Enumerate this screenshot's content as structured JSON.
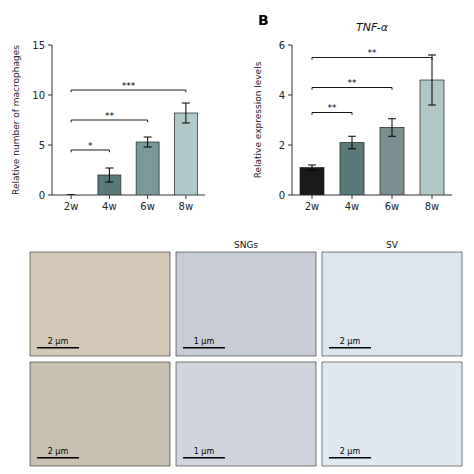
{
  "chart_data": [
    {
      "type": "bar",
      "ylabel": "Relative number of macrophages",
      "categories": [
        "2w",
        "4w",
        "6w",
        "8w"
      ],
      "values": [
        0,
        2.0,
        5.3,
        8.2
      ],
      "errors": [
        0,
        0.7,
        0.5,
        1.0
      ],
      "colors": [
        "#6b8e8e",
        "#5a7a7a",
        "#7a9a9a",
        "#b0c8c8"
      ],
      "ylim": [
        0,
        15
      ],
      "yticks": [
        0,
        5,
        10,
        15
      ],
      "annotations": [
        {
          "x1": 0,
          "x2": 1,
          "y": 4.5,
          "label": "*"
        },
        {
          "x1": 0,
          "x2": 2,
          "y": 7.5,
          "label": "**"
        },
        {
          "x1": 0,
          "x2": 3,
          "y": 10.5,
          "label": "***"
        }
      ]
    },
    {
      "type": "bar",
      "title": "TNF-α",
      "panel_label": "B",
      "ylabel": "Relative expression levels",
      "categories": [
        "2w",
        "4w",
        "6w",
        "8w"
      ],
      "values": [
        1.1,
        2.1,
        2.7,
        4.6
      ],
      "errors": [
        0.1,
        0.25,
        0.35,
        1.0
      ],
      "colors": [
        "#1a1a1a",
        "#5a7a7a",
        "#7a9090",
        "#b0c8c8"
      ],
      "ylim": [
        0,
        6
      ],
      "yticks": [
        0,
        2,
        4,
        6
      ],
      "annotations": [
        {
          "x1": 0,
          "x2": 1,
          "y": 3.3,
          "label": "**"
        },
        {
          "x1": 0,
          "x2": 2,
          "y": 4.3,
          "label": "**"
        },
        {
          "x1": 0,
          "x2": 3,
          "y": 5.5,
          "label": "**"
        }
      ]
    },
    {
      "type": "image",
      "panels": [
        {
          "color": "#d4c8b8",
          "annotations": [
            "2 μm"
          ]
        },
        {
          "title": "SNGs",
          "color": "#c8ccd4",
          "annotations": [
            "1 μm"
          ]
        },
        {
          "title": "SV",
          "color": "#dce4ec",
          "annotations": [
            "2 μm"
          ]
        },
        {
          "color": "#c8c0b0",
          "annotations": [
            "2 μm"
          ]
        },
        {
          "color": "#d0d4dc",
          "annotations": [
            "1 μm"
          ]
        },
        {
          "color": "#e0e8f0",
          "annotations": [
            "2 μm"
          ]
        }
      ]
    }
  ]
}
